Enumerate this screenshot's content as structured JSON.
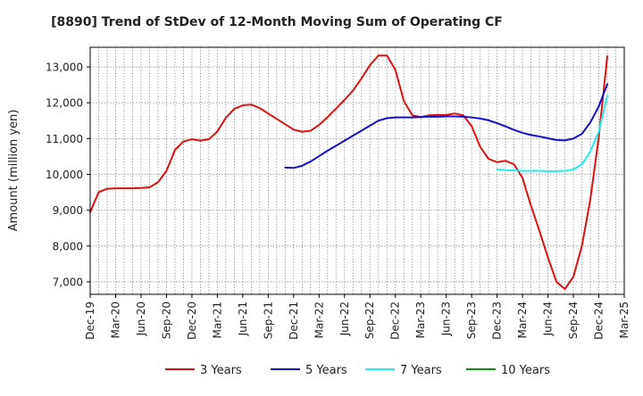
{
  "chart_data": {
    "type": "line",
    "title": "[8890]  Trend of StDev of 12-Month Moving Sum of Operating CF",
    "xlabel": "",
    "ylabel": "Amount (million yen)",
    "x_ticks": [
      "Dec-19",
      "Mar-20",
      "Jun-20",
      "Sep-20",
      "Dec-20",
      "Mar-21",
      "Jun-21",
      "Sep-21",
      "Dec-21",
      "Mar-22",
      "Jun-22",
      "Sep-22",
      "Dec-22",
      "Mar-23",
      "Jun-23",
      "Sep-23",
      "Dec-23",
      "Mar-24",
      "Jun-24",
      "Sep-24",
      "Dec-24",
      "Mar-25"
    ],
    "y_ticks": [
      7000,
      8000,
      9000,
      10000,
      11000,
      12000,
      13000
    ],
    "y_tick_labels": [
      "7,000",
      "8,000",
      "9,000",
      "10,000",
      "11,000",
      "12,000",
      "13,000"
    ],
    "ylim": [
      6650,
      13550
    ],
    "x_domain": [
      "2019-12",
      "2025-03"
    ],
    "grid": true,
    "legend_position": "bottom",
    "series": [
      {
        "name": "3 Years",
        "color": "#dd1111",
        "points": [
          [
            "2019-12",
            8950
          ],
          [
            "2020-01",
            9500
          ],
          [
            "2020-02",
            9600
          ],
          [
            "2020-03",
            9610
          ],
          [
            "2020-04",
            9610
          ],
          [
            "2020-05",
            9610
          ],
          [
            "2020-06",
            9620
          ],
          [
            "2020-07",
            9640
          ],
          [
            "2020-08",
            9780
          ],
          [
            "2020-09",
            10100
          ],
          [
            "2020-10",
            10680
          ],
          [
            "2020-11",
            10920
          ],
          [
            "2020-12",
            10980
          ],
          [
            "2021-01",
            10940
          ],
          [
            "2021-02",
            10980
          ],
          [
            "2021-03",
            11200
          ],
          [
            "2021-04",
            11580
          ],
          [
            "2021-05",
            11830
          ],
          [
            "2021-06",
            11930
          ],
          [
            "2021-07",
            11950
          ],
          [
            "2021-08",
            11850
          ],
          [
            "2021-09",
            11700
          ],
          [
            "2021-10",
            11550
          ],
          [
            "2021-11",
            11400
          ],
          [
            "2021-12",
            11250
          ],
          [
            "2022-01",
            11190
          ],
          [
            "2022-02",
            11220
          ],
          [
            "2022-03",
            11380
          ],
          [
            "2022-04",
            11600
          ],
          [
            "2022-05",
            11840
          ],
          [
            "2022-06",
            12080
          ],
          [
            "2022-07",
            12340
          ],
          [
            "2022-08",
            12680
          ],
          [
            "2022-09",
            13050
          ],
          [
            "2022-10",
            13320
          ],
          [
            "2022-11",
            13320
          ],
          [
            "2022-12",
            12920
          ],
          [
            "2023-01",
            12050
          ],
          [
            "2023-02",
            11650
          ],
          [
            "2023-03",
            11600
          ],
          [
            "2023-04",
            11650
          ],
          [
            "2023-05",
            11660
          ],
          [
            "2023-06",
            11660
          ],
          [
            "2023-07",
            11700
          ],
          [
            "2023-08",
            11650
          ],
          [
            "2023-09",
            11350
          ],
          [
            "2023-10",
            10770
          ],
          [
            "2023-11",
            10430
          ],
          [
            "2023-12",
            10340
          ],
          [
            "2024-01",
            10380
          ],
          [
            "2024-02",
            10280
          ],
          [
            "2024-03",
            9900
          ],
          [
            "2024-04",
            9120
          ],
          [
            "2024-05",
            8420
          ],
          [
            "2024-06",
            7680
          ],
          [
            "2024-07",
            7000
          ],
          [
            "2024-08",
            6800
          ],
          [
            "2024-09",
            7140
          ],
          [
            "2024-10",
            8000
          ],
          [
            "2024-11",
            9300
          ],
          [
            "2024-12",
            11050
          ],
          [
            "2025-01",
            13300
          ]
        ]
      },
      {
        "name": "5 Years",
        "color": "#1111cc",
        "points": [
          [
            "2021-11",
            10190
          ],
          [
            "2021-12",
            10180
          ],
          [
            "2022-01",
            10240
          ],
          [
            "2022-02",
            10360
          ],
          [
            "2022-03",
            10510
          ],
          [
            "2022-04",
            10660
          ],
          [
            "2022-05",
            10800
          ],
          [
            "2022-06",
            10940
          ],
          [
            "2022-07",
            11080
          ],
          [
            "2022-08",
            11220
          ],
          [
            "2022-09",
            11360
          ],
          [
            "2022-10",
            11500
          ],
          [
            "2022-11",
            11570
          ],
          [
            "2022-12",
            11590
          ],
          [
            "2023-01",
            11590
          ],
          [
            "2023-02",
            11590
          ],
          [
            "2023-03",
            11600
          ],
          [
            "2023-04",
            11610
          ],
          [
            "2023-05",
            11610
          ],
          [
            "2023-06",
            11620
          ],
          [
            "2023-07",
            11620
          ],
          [
            "2023-08",
            11610
          ],
          [
            "2023-09",
            11590
          ],
          [
            "2023-10",
            11560
          ],
          [
            "2023-11",
            11510
          ],
          [
            "2023-12",
            11430
          ],
          [
            "2024-01",
            11340
          ],
          [
            "2024-02",
            11240
          ],
          [
            "2024-03",
            11160
          ],
          [
            "2024-04",
            11100
          ],
          [
            "2024-05",
            11060
          ],
          [
            "2024-06",
            11010
          ],
          [
            "2024-07",
            10960
          ],
          [
            "2024-08",
            10950
          ],
          [
            "2024-09",
            11000
          ],
          [
            "2024-10",
            11130
          ],
          [
            "2024-11",
            11450
          ],
          [
            "2024-12",
            11900
          ],
          [
            "2025-01",
            12520
          ]
        ]
      },
      {
        "name": "7 Years",
        "color": "#22eeee",
        "points": [
          [
            "2023-12",
            10140
          ],
          [
            "2024-01",
            10120
          ],
          [
            "2024-02",
            10110
          ],
          [
            "2024-03",
            10100
          ],
          [
            "2024-04",
            10100
          ],
          [
            "2024-05",
            10100
          ],
          [
            "2024-06",
            10090
          ],
          [
            "2024-07",
            10090
          ],
          [
            "2024-08",
            10100
          ],
          [
            "2024-09",
            10140
          ],
          [
            "2024-10",
            10280
          ],
          [
            "2024-11",
            10640
          ],
          [
            "2024-12",
            11200
          ],
          [
            "2025-01",
            12200
          ]
        ]
      },
      {
        "name": "10 Years",
        "color": "#118811",
        "points": []
      }
    ]
  }
}
